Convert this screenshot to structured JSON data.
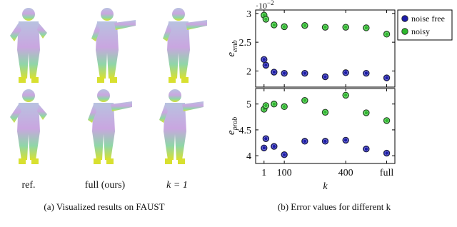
{
  "figure_a": {
    "column_labels": [
      "ref.",
      "full (ours)",
      "k = 1"
    ],
    "caption": "(a) Visualized results on FAUST"
  },
  "figure_b": {
    "caption": "(b) Error values for different k"
  },
  "chart_data": [
    {
      "type": "scatter",
      "ylabel": "e",
      "ylabel_sub": "emb",
      "scale_label": "·10",
      "scale_exponent": "−2",
      "x": [
        1,
        10,
        50,
        100,
        200,
        300,
        400,
        500,
        600
      ],
      "xlim": [
        -40,
        640
      ],
      "xticks": [
        1,
        100,
        400,
        {
          "value": 600,
          "label": "full"
        }
      ],
      "ylim": [
        1.72,
        3.06
      ],
      "yticks": [
        2,
        2.5,
        3
      ],
      "legend": "outside-right",
      "series": [
        {
          "name": "noise free",
          "color": "#1c1ca8",
          "values": [
            2.2,
            2.1,
            1.98,
            1.96,
            1.96,
            1.9,
            1.97,
            1.96,
            1.88
          ]
        },
        {
          "name": "noisy",
          "color": "#2eb82e",
          "values": [
            2.97,
            2.9,
            2.8,
            2.77,
            2.79,
            2.76,
            2.76,
            2.75,
            2.64
          ]
        }
      ]
    },
    {
      "type": "scatter",
      "ylabel": "e",
      "ylabel_sub": "prob",
      "xlabel": "k",
      "x": [
        1,
        10,
        50,
        100,
        200,
        300,
        400,
        500,
        600
      ],
      "xlim": [
        -40,
        640
      ],
      "xticks": [
        1,
        100,
        400,
        {
          "value": 600,
          "label": "full"
        }
      ],
      "ylim": [
        3.85,
        5.3
      ],
      "yticks": [
        4,
        4.5,
        5
      ],
      "series": [
        {
          "color": "#1c1ca8",
          "values": [
            4.15,
            4.33,
            4.18,
            4.02,
            4.28,
            4.28,
            4.3,
            4.13,
            4.05
          ]
        },
        {
          "color": "#2eb82e",
          "values": [
            4.9,
            4.97,
            5.0,
            4.95,
            5.07,
            4.84,
            5.17,
            4.83,
            4.68
          ]
        }
      ]
    }
  ]
}
